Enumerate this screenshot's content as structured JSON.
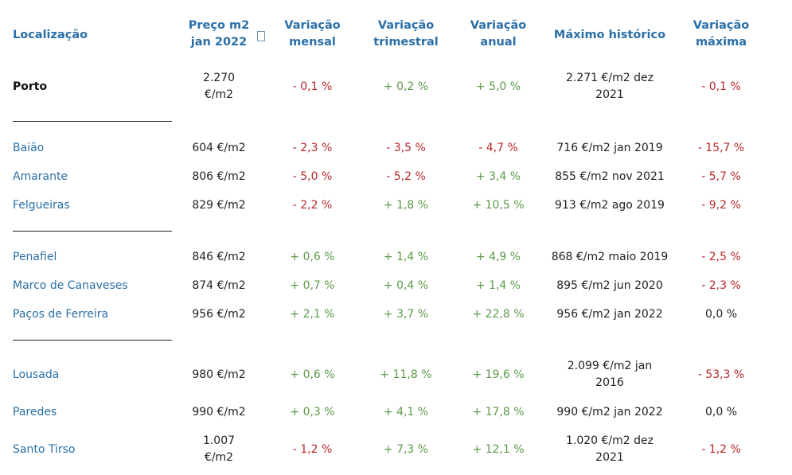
{
  "headers": {
    "location": "Localização",
    "price": [
      "Preço m2",
      "jan 2022"
    ],
    "monthly": [
      "Variação",
      "mensal"
    ],
    "quarterly": [
      "Variação",
      "trimestral"
    ],
    "annual": [
      "Variação",
      "anual"
    ],
    "max_hist": "Máximo histórico",
    "max_var": [
      "Variação",
      "máxima"
    ]
  },
  "rows": [
    {
      "loc": "Porto",
      "price": [
        "2.270",
        "€/m2"
      ],
      "monthly": "- 0,1 %",
      "quarterly": "+ 0,2 %",
      "annual": "+ 5,0 %",
      "max": [
        "2.271 €/m2 dez",
        "2021"
      ],
      "maxvar": "- 0,1 %"
    },
    {
      "loc": "Baião",
      "price": [
        "604 €/m2"
      ],
      "monthly": "- 2,3 %",
      "quarterly": "- 3,5 %",
      "annual": "- 4,7 %",
      "max": [
        "716 €/m2 jan 2019"
      ],
      "maxvar": "- 15,7 %"
    },
    {
      "loc": "Amarante",
      "price": [
        "806 €/m2"
      ],
      "monthly": "- 5,0 %",
      "quarterly": "- 5,2 %",
      "annual": "+ 3,4 %",
      "max": [
        "855 €/m2 nov 2021"
      ],
      "maxvar": "- 5,7 %"
    },
    {
      "loc": "Felgueiras",
      "price": [
        "829 €/m2"
      ],
      "monthly": "- 2,2 %",
      "quarterly": "+ 1,8 %",
      "annual": "+ 10,5 %",
      "max": [
        "913 €/m2 ago 2019"
      ],
      "maxvar": "- 9,2 %"
    },
    {
      "loc": "Penafiel",
      "price": [
        "846 €/m2"
      ],
      "monthly": "+ 0,6 %",
      "quarterly": "+ 1,4 %",
      "annual": "+ 4,9 %",
      "max": [
        "868 €/m2 maio 2019"
      ],
      "maxvar": "- 2,5 %"
    },
    {
      "loc": "Marco de Canaveses",
      "price": [
        "874 €/m2"
      ],
      "monthly": "+ 0,7 %",
      "quarterly": "+ 0,4 %",
      "annual": "+ 1,4 %",
      "max": [
        "895 €/m2 jun 2020"
      ],
      "maxvar": "- 2,3 %"
    },
    {
      "loc": "Paços de Ferreira",
      "price": [
        "956 €/m2"
      ],
      "monthly": "+ 2,1 %",
      "quarterly": "+ 3,7 %",
      "annual": "+ 22,8 %",
      "max": [
        "956 €/m2 jan 2022"
      ],
      "maxvar": "0,0 %"
    },
    {
      "loc": "Lousada",
      "price": [
        "980 €/m2"
      ],
      "monthly": "+ 0,6 %",
      "quarterly": "+ 11,8 %",
      "annual": "+ 19,6 %",
      "max": [
        "2.099 €/m2 jan",
        "2016"
      ],
      "maxvar": "- 53,3 %"
    },
    {
      "loc": "Paredes",
      "price": [
        "990 €/m2"
      ],
      "monthly": "+ 0,3 %",
      "quarterly": "+ 4,1 %",
      "annual": "+ 17,8 %",
      "max": [
        "990 €/m2 jan 2022"
      ],
      "maxvar": "0,0 %"
    },
    {
      "loc": "Santo Tirso",
      "price": [
        "1.007",
        "€/m2"
      ],
      "monthly": "- 1,2 %",
      "quarterly": "+ 7,3 %",
      "annual": "+ 12,1 %",
      "max": [
        "1.020 €/m2 dez",
        "2021"
      ],
      "maxvar": "- 1,2 %"
    }
  ],
  "colors": {
    "header": "#2a6fa8",
    "negative": "#b8282a",
    "positive": "#5a9a4a",
    "location": "#2a6fa8"
  }
}
